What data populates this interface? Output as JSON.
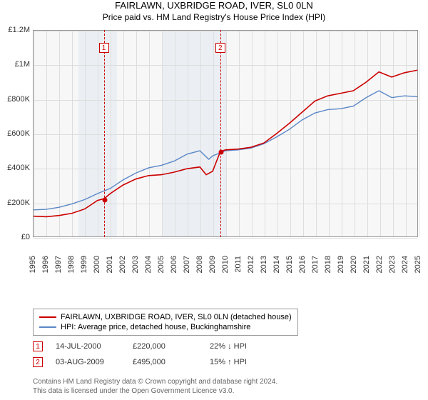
{
  "title": "FAIRLAWN, UXBRIDGE ROAD, IVER, SL0 0LN",
  "subtitle": "Price paid vs. HM Land Registry's House Price Index (HPI)",
  "chart": {
    "type": "line",
    "background_color": "#f7f7f7",
    "grid_color": "#dddddd",
    "border_color": "#999999",
    "x": {
      "min": 1995,
      "max": 2025,
      "ticks": [
        1995,
        1996,
        1997,
        1998,
        1999,
        2000,
        2001,
        2002,
        2003,
        2004,
        2005,
        2006,
        2007,
        2008,
        2009,
        2010,
        2011,
        2012,
        2013,
        2014,
        2015,
        2016,
        2017,
        2018,
        2019,
        2020,
        2021,
        2022,
        2023,
        2024,
        2025
      ]
    },
    "y": {
      "min": 0,
      "max": 1200000,
      "tick_step": 200000,
      "tick_labels": [
        "£0",
        "£200K",
        "£400K",
        "£600K",
        "£800K",
        "£1M",
        "£1.2M"
      ]
    },
    "shade_bands": [
      {
        "from": 1998.5,
        "to": 2001.5,
        "color": "#e3e9f0"
      },
      {
        "from": 2005,
        "to": 2010,
        "color": "#e3e9f0"
      }
    ],
    "series": [
      {
        "name": "FAIRLAWN, UXBRIDGE ROAD, IVER, SL0 0LN (detached house)",
        "color": "#cc0000",
        "line_width": 1.6,
        "points": [
          [
            1995,
            118000
          ],
          [
            1996,
            115000
          ],
          [
            1997,
            122000
          ],
          [
            1998,
            135000
          ],
          [
            1999,
            160000
          ],
          [
            2000,
            210000
          ],
          [
            2000.53,
            220000
          ],
          [
            2001,
            250000
          ],
          [
            2002,
            300000
          ],
          [
            2003,
            335000
          ],
          [
            2004,
            355000
          ],
          [
            2005,
            360000
          ],
          [
            2006,
            375000
          ],
          [
            2007,
            395000
          ],
          [
            2008,
            405000
          ],
          [
            2008.5,
            360000
          ],
          [
            2009,
            380000
          ],
          [
            2009.6,
            495000
          ],
          [
            2010,
            505000
          ],
          [
            2011,
            510000
          ],
          [
            2012,
            520000
          ],
          [
            2013,
            545000
          ],
          [
            2014,
            600000
          ],
          [
            2015,
            660000
          ],
          [
            2016,
            725000
          ],
          [
            2017,
            790000
          ],
          [
            2018,
            820000
          ],
          [
            2019,
            835000
          ],
          [
            2020,
            850000
          ],
          [
            2021,
            900000
          ],
          [
            2022,
            960000
          ],
          [
            2023,
            930000
          ],
          [
            2024,
            955000
          ],
          [
            2025,
            970000
          ]
        ]
      },
      {
        "name": "HPI: Average price, detached house, Buckinghamshire",
        "color": "#5b87c7",
        "line_width": 1.4,
        "points": [
          [
            1995,
            155000
          ],
          [
            1996,
            158000
          ],
          [
            1997,
            170000
          ],
          [
            1998,
            190000
          ],
          [
            1999,
            215000
          ],
          [
            2000,
            250000
          ],
          [
            2001,
            280000
          ],
          [
            2002,
            330000
          ],
          [
            2003,
            370000
          ],
          [
            2004,
            400000
          ],
          [
            2005,
            415000
          ],
          [
            2006,
            440000
          ],
          [
            2007,
            480000
          ],
          [
            2008,
            500000
          ],
          [
            2008.7,
            450000
          ],
          [
            2009,
            470000
          ],
          [
            2010,
            500000
          ],
          [
            2011,
            505000
          ],
          [
            2012,
            515000
          ],
          [
            2013,
            540000
          ],
          [
            2014,
            580000
          ],
          [
            2015,
            625000
          ],
          [
            2016,
            680000
          ],
          [
            2017,
            720000
          ],
          [
            2018,
            740000
          ],
          [
            2019,
            745000
          ],
          [
            2020,
            760000
          ],
          [
            2021,
            810000
          ],
          [
            2022,
            850000
          ],
          [
            2023,
            810000
          ],
          [
            2024,
            820000
          ],
          [
            2025,
            815000
          ]
        ]
      }
    ],
    "markers": [
      {
        "id": "1",
        "x": 2000.53,
        "y": 220000
      },
      {
        "id": "2",
        "x": 2009.6,
        "y": 495000
      }
    ]
  },
  "legend": {
    "items": [
      {
        "color": "#cc0000",
        "label": "FAIRLAWN, UXBRIDGE ROAD, IVER, SL0 0LN (detached house)"
      },
      {
        "color": "#5b87c7",
        "label": "HPI: Average price, detached house, Buckinghamshire"
      }
    ]
  },
  "sales": [
    {
      "id": "1",
      "date": "14-JUL-2000",
      "price": "£220,000",
      "delta": "22% ↓ HPI"
    },
    {
      "id": "2",
      "date": "03-AUG-2009",
      "price": "£495,000",
      "delta": "15% ↑ HPI"
    }
  ],
  "footer_line1": "Contains HM Land Registry data © Crown copyright and database right 2024.",
  "footer_line2": "This data is licensed under the Open Government Licence v3.0."
}
